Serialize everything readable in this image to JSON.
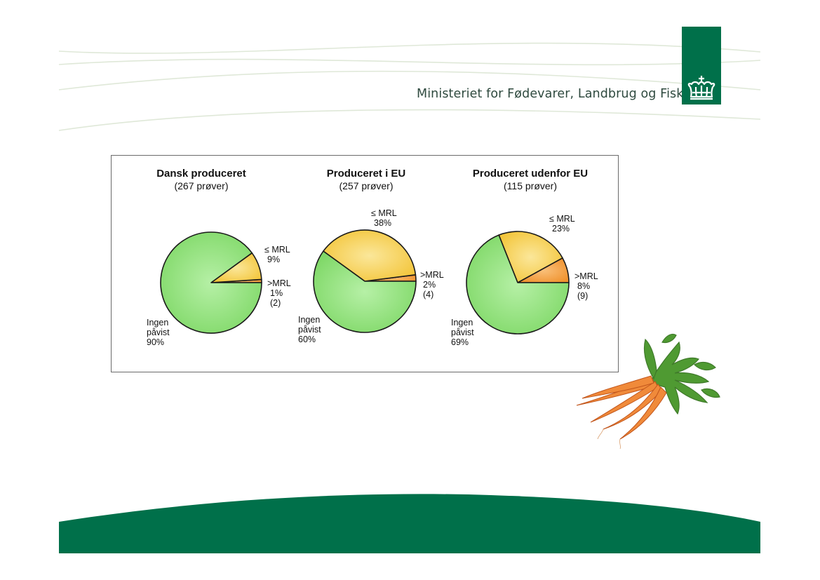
{
  "header": {
    "ministry_name": "Ministeriet for Fødevarer, Landbrug og Fiskeri"
  },
  "colors": {
    "brand_green": "#00704a",
    "ingen": "#8fe07a",
    "le_mrl": "#f6d24e",
    "gt_mrl": "#f4a33c"
  },
  "chart_data": [
    {
      "type": "pie",
      "title": "Dansk produceret",
      "subtitle": "(267 prøver)",
      "slices": [
        {
          "label": "Ingen påvist",
          "label_lines": [
            "Ingen",
            "påvist"
          ],
          "pct_label": "90%",
          "value": 90
        },
        {
          "label": "≤ MRL",
          "label_lines": [
            "≤ MRL"
          ],
          "pct_label": "9%",
          "value": 9
        },
        {
          "label": ">MRL",
          "label_lines": [
            ">MRL"
          ],
          "pct_label": "1%",
          "count_label": "(2)",
          "value": 1
        }
      ]
    },
    {
      "type": "pie",
      "title": "Produceret i EU",
      "subtitle": "(257 prøver)",
      "slices": [
        {
          "label": "Ingen påvist",
          "label_lines": [
            "Ingen",
            "påvist"
          ],
          "pct_label": "60%",
          "value": 60
        },
        {
          "label": "≤ MRL",
          "label_lines": [
            "≤ MRL"
          ],
          "pct_label": "38%",
          "value": 38
        },
        {
          "label": ">MRL",
          "label_lines": [
            ">MRL"
          ],
          "pct_label": "2%",
          "count_label": "(4)",
          "value": 2
        }
      ]
    },
    {
      "type": "pie",
      "title": "Produceret udenfor EU",
      "subtitle": "(115 prøver)",
      "slices": [
        {
          "label": "Ingen påvist",
          "label_lines": [
            "Ingen",
            "påvist"
          ],
          "pct_label": "69%",
          "value": 69
        },
        {
          "label": "≤ MRL",
          "label_lines": [
            "≤ MRL"
          ],
          "pct_label": "23%",
          "value": 23
        },
        {
          "label": ">MRL",
          "label_lines": [
            ">MRL"
          ],
          "pct_label": "8%",
          "count_label": "(9)",
          "value": 8
        }
      ]
    }
  ]
}
